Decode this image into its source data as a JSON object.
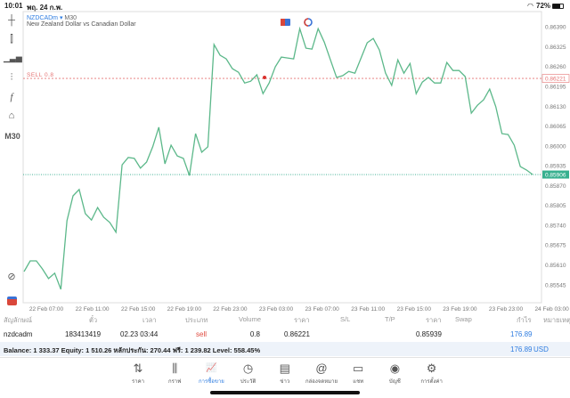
{
  "status_bar": {
    "time": "10:01",
    "date": "พฤ. 24 ก.พ.",
    "battery": "72%",
    "wifi_icon": "wifi-icon"
  },
  "toolbar": {
    "items": [
      "crosshair-icon",
      "candles-icon",
      "indicators-icon",
      "settings-sliders-icon",
      "function-icon",
      "objects-icon"
    ],
    "timeframe": "M30"
  },
  "chart": {
    "symbol": "NZDCADm",
    "arrow": "▾",
    "timeframe": "M30",
    "description": "New Zealand Dollar vs Canadian Dollar",
    "sell_label": "SELL 0.8",
    "sell_price": "0.86221",
    "bid_price": "0.85906",
    "colors": {
      "line": "#5cb88a",
      "sell": "#e57373",
      "bid": "#2aa889",
      "bid_bg": "#37b08f"
    }
  },
  "chart_data": {
    "type": "line",
    "series": [
      {
        "values": [
          0.85588,
          0.85623,
          0.85623,
          0.85597,
          0.85565,
          0.85583,
          0.8553,
          0.85755,
          0.85836,
          0.85857,
          0.85778,
          0.85757,
          0.85798,
          0.85766,
          0.85749,
          0.85717,
          0.85938,
          0.85962,
          0.85959,
          0.85927,
          0.85947,
          0.85997,
          0.86061,
          0.85941,
          0.86002,
          0.85967,
          0.85959,
          0.85903,
          0.8604,
          0.85979,
          0.85997,
          0.86332,
          0.86297,
          0.86285,
          0.86253,
          0.86241,
          0.86206,
          0.86212,
          0.86233,
          0.86171,
          0.86206,
          0.86259,
          0.86291,
          0.86288,
          0.86285,
          0.86384,
          0.8632,
          0.86317,
          0.86384,
          0.8634,
          0.86282,
          0.86224,
          0.8623,
          0.86244,
          0.86238,
          0.86288,
          0.86338,
          0.86352,
          0.86314,
          0.86238,
          0.86198,
          0.86282,
          0.86238,
          0.8627,
          0.86171,
          0.86209,
          0.86224,
          0.86206,
          0.86206,
          0.86273,
          0.86247,
          0.86247,
          0.86227,
          0.86107,
          0.86133,
          0.86151,
          0.86186,
          0.86128,
          0.8604,
          0.86037,
          0.86002,
          0.85932,
          0.85921,
          0.85906
        ]
      }
    ],
    "x_ticks": [
      "22 Feb 07:00",
      "22 Feb 11:00",
      "22 Feb 15:00",
      "22 Feb 19:00",
      "22 Feb 23:00",
      "23 Feb 03:00",
      "23 Feb 07:00",
      "23 Feb 11:00",
      "23 Feb 15:00",
      "23 Feb 19:00",
      "23 Feb 23:00",
      "24 Feb 03:00"
    ],
    "y_ticks": [
      "0.86390",
      "0.86325",
      "0.86260",
      "0.86195",
      "0.86130",
      "0.86065",
      "0.86000",
      "0.85935",
      "0.85870",
      "0.85805",
      "0.85740",
      "0.85675",
      "0.85610",
      "0.85545"
    ],
    "ylim": [
      0.85486,
      0.8644
    ],
    "grid": false
  },
  "table": {
    "headers": [
      "สัญลักษณ์",
      "ตั๋ว",
      "เวลา",
      "ประเภท",
      "Volume",
      "ราคา",
      "S/L",
      "T/P",
      "ราคา",
      "Swap",
      "กำไร",
      "หมายเหตุ"
    ],
    "row": {
      "symbol": "nzdcadm",
      "ticket": "183413419",
      "time": "02.23 03:44",
      "type": "sell",
      "volume": "0.8",
      "open_price": "0.86221",
      "sl": "",
      "tp": "",
      "price": "0.85939",
      "swap": "",
      "profit": "176.89",
      "comment": ""
    },
    "balance": "Balance: 1 333.37 Equity: 1 510.26 หลักประกัน: 270.44 ฟรี: 1 239.82 Level: 558.45%",
    "total_profit": "176.89",
    "currency": "USD"
  },
  "nav": [
    {
      "label": "ราคา",
      "icon": "⇅",
      "name": "quotes"
    },
    {
      "label": "กราฟ",
      "icon": "⫼",
      "name": "chart"
    },
    {
      "label": "การซื้อขาย",
      "icon": "📈",
      "name": "trade",
      "active": true
    },
    {
      "label": "ประวัติ",
      "icon": "◷",
      "name": "history"
    },
    {
      "label": "ข่าว",
      "icon": "▤",
      "name": "news"
    },
    {
      "label": "กล่องจดหมาย",
      "icon": "@",
      "name": "mailbox"
    },
    {
      "label": "แชท",
      "icon": "▭",
      "name": "chat"
    },
    {
      "label": "บัญชี",
      "icon": "◉",
      "name": "accounts"
    },
    {
      "label": "การตั้งค่า",
      "icon": "⚙",
      "name": "settings"
    }
  ]
}
